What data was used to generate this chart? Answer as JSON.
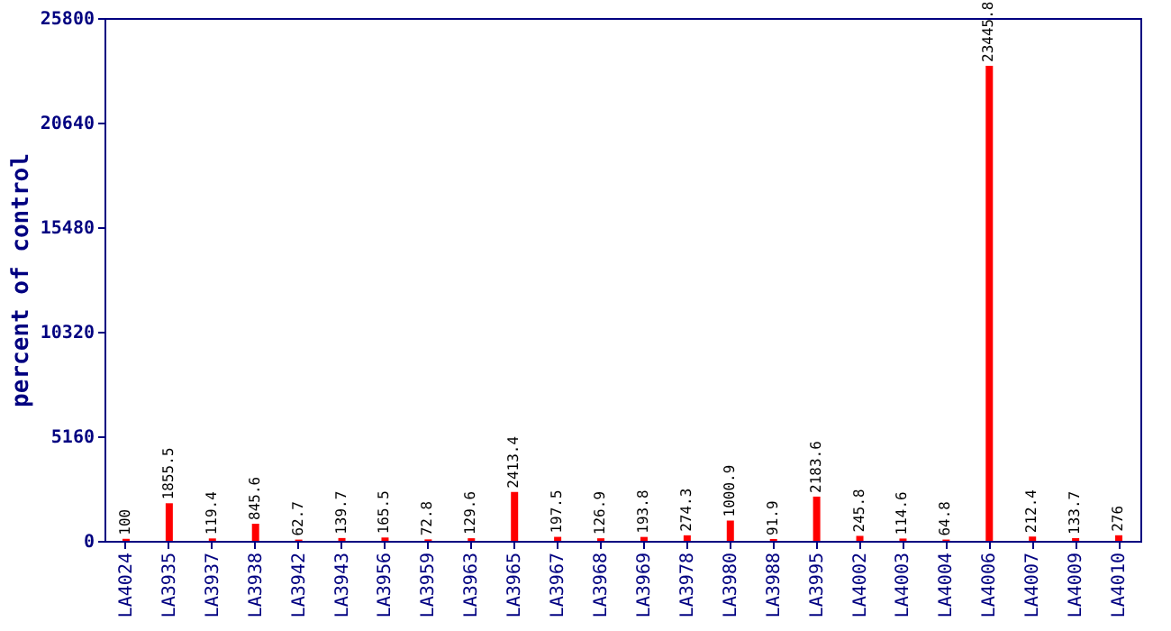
{
  "chart_data": {
    "type": "bar",
    "ylabel": "percent of control",
    "categories": [
      "LA4024",
      "LA3935",
      "LA3937",
      "LA3938",
      "LA3942",
      "LA3943",
      "LA3956",
      "LA3959",
      "LA3963",
      "LA3965",
      "LA3967",
      "LA3968",
      "LA3969",
      "LA3978",
      "LA3980",
      "LA3988",
      "LA3995",
      "LA4002",
      "LA4003",
      "LA4004",
      "LA4006",
      "LA4007",
      "LA4009",
      "LA4010"
    ],
    "values": [
      100,
      1855.5,
      119.4,
      845.6,
      62.7,
      139.7,
      165.5,
      72.8,
      129.6,
      2413.4,
      197.5,
      126.9,
      193.8,
      274.3,
      1000.9,
      91.9,
      2183.6,
      245.8,
      114.6,
      64.8,
      23445.8,
      212.4,
      133.7,
      276
    ],
    "color": "#ff0000",
    "ylim": [
      0,
      25800
    ],
    "yticks": [
      0,
      5160,
      10320,
      15480,
      20640,
      25800
    ],
    "grid": false,
    "data_labels": true
  }
}
